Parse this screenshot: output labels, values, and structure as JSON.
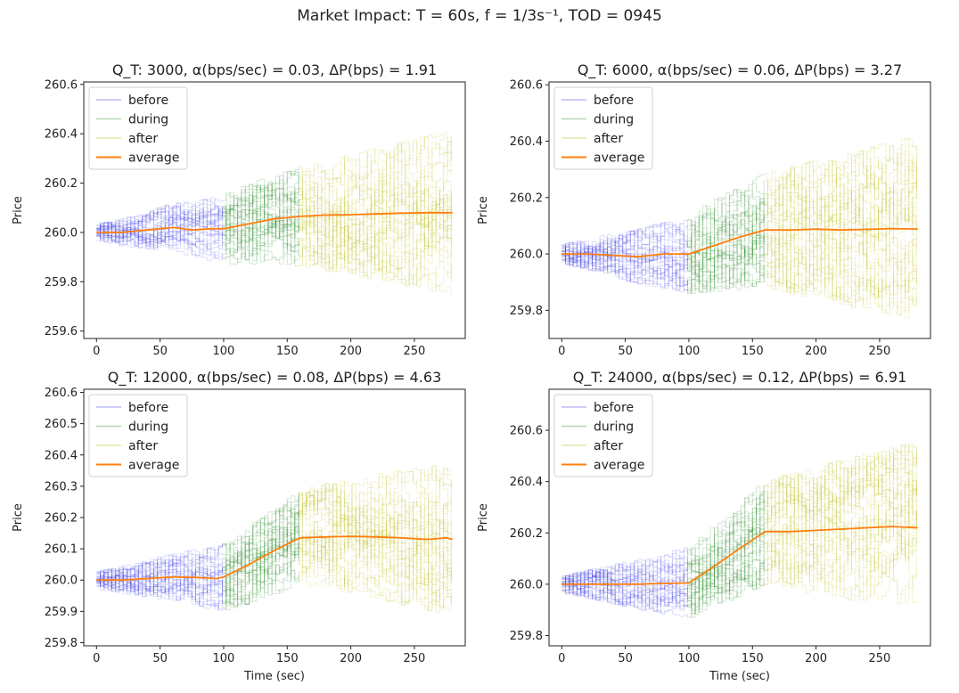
{
  "figure": {
    "suptitle": "Market Impact: T = 60s, f = 1/3s⁻¹, TOD = 0945",
    "colors": {
      "before": "#3a3ae6",
      "during": "#2a8a2a",
      "after": "#c8c840",
      "average": "#ff7f0e",
      "axis": "#222222"
    }
  },
  "chart_data": [
    {
      "type": "line",
      "title": "Q_T: 3000, α(bps/sec) = 0.03, ΔP(bps) = 1.91",
      "xlabel": "",
      "ylabel": "Price",
      "xlim": [
        -10,
        290
      ],
      "ylim": [
        259.57,
        260.61
      ],
      "xticks": [
        0,
        50,
        100,
        150,
        200,
        250
      ],
      "yticks": [
        259.6,
        259.8,
        260.0,
        260.2,
        260.4,
        260.6
      ],
      "yticklabels": [
        "259.6",
        "259.8",
        "260.0",
        "260.2",
        "260.4",
        "260.6"
      ],
      "legend": {
        "position": "top-left",
        "entries": [
          "before",
          "during",
          "after",
          "average"
        ]
      },
      "phases": {
        "before": [
          0,
          100
        ],
        "during": [
          100,
          160
        ],
        "after": [
          160,
          280
        ]
      },
      "band_spread": {
        "before": 0.12,
        "during": 0.2,
        "after": 0.3
      },
      "average": {
        "x": [
          0,
          20,
          40,
          60,
          75,
          90,
          100,
          120,
          140,
          160,
          180,
          200,
          220,
          240,
          260,
          280
        ],
        "y": [
          260.0,
          260.0,
          260.01,
          260.02,
          260.01,
          260.015,
          260.015,
          260.035,
          260.055,
          260.065,
          260.07,
          260.072,
          260.075,
          260.078,
          260.08,
          260.08
        ]
      }
    },
    {
      "type": "line",
      "title": "Q_T: 6000, α(bps/sec) = 0.06, ΔP(bps) = 3.27",
      "xlabel": "",
      "ylabel": "Price",
      "xlim": [
        -10,
        290
      ],
      "ylim": [
        259.7,
        260.61
      ],
      "xticks": [
        0,
        50,
        100,
        150,
        200,
        250
      ],
      "yticks": [
        259.8,
        260.0,
        260.2,
        260.4,
        260.6
      ],
      "yticklabels": [
        "259.8",
        "260.0",
        "260.2",
        "260.4",
        "260.6"
      ],
      "legend": {
        "position": "top-left",
        "entries": [
          "before",
          "during",
          "after",
          "average"
        ]
      },
      "phases": {
        "before": [
          0,
          100
        ],
        "during": [
          100,
          160
        ],
        "after": [
          160,
          280
        ]
      },
      "band_spread": {
        "before": 0.12,
        "during": 0.2,
        "after": 0.3
      },
      "average": {
        "x": [
          0,
          20,
          40,
          60,
          80,
          100,
          120,
          140,
          160,
          180,
          200,
          220,
          240,
          260,
          280
        ],
        "y": [
          260.0,
          260.0,
          259.995,
          259.99,
          260.0,
          260.0,
          260.03,
          260.06,
          260.085,
          260.085,
          260.088,
          260.085,
          260.087,
          260.09,
          260.088
        ]
      }
    },
    {
      "type": "line",
      "title": "Q_T: 12000, α(bps/sec) = 0.08, ΔP(bps) = 4.63",
      "xlabel": "Time (sec)",
      "ylabel": "Price",
      "xlim": [
        -10,
        290
      ],
      "ylim": [
        259.79,
        260.61
      ],
      "xticks": [
        0,
        50,
        100,
        150,
        200,
        250
      ],
      "yticks": [
        259.8,
        259.9,
        260.0,
        260.1,
        260.2,
        260.3,
        260.4,
        260.5,
        260.6
      ],
      "yticklabels": [
        "259.8",
        "259.9",
        "260.0",
        "260.1",
        "260.2",
        "260.3",
        "260.4",
        "260.5",
        "260.6"
      ],
      "legend": {
        "position": "top-left",
        "entries": [
          "before",
          "during",
          "after",
          "average"
        ]
      },
      "phases": {
        "before": [
          0,
          100
        ],
        "during": [
          100,
          160
        ],
        "after": [
          160,
          280
        ]
      },
      "band_spread": {
        "before": 0.1,
        "during": 0.16,
        "after": 0.22
      },
      "average": {
        "x": [
          0,
          20,
          40,
          60,
          80,
          95,
          100,
          120,
          140,
          160,
          180,
          200,
          220,
          240,
          260,
          275,
          280
        ],
        "y": [
          260.0,
          260.0,
          260.005,
          260.01,
          260.008,
          260.005,
          260.01,
          260.05,
          260.095,
          260.135,
          260.138,
          260.14,
          260.138,
          260.135,
          260.13,
          260.135,
          260.13
        ]
      }
    },
    {
      "type": "line",
      "title": "Q_T: 24000, α(bps/sec) = 0.12, ΔP(bps) = 6.91",
      "xlabel": "Time (sec)",
      "ylabel": "Price",
      "xlim": [
        -10,
        290
      ],
      "ylim": [
        259.76,
        260.76
      ],
      "xticks": [
        0,
        50,
        100,
        150,
        200,
        250
      ],
      "yticks": [
        259.8,
        260.0,
        260.2,
        260.4,
        260.6
      ],
      "yticklabels": [
        "259.8",
        "260.0",
        "260.2",
        "260.4",
        "260.6"
      ],
      "legend": {
        "position": "top-left",
        "entries": [
          "before",
          "during",
          "after",
          "average"
        ]
      },
      "phases": {
        "before": [
          0,
          100
        ],
        "during": [
          100,
          160
        ],
        "after": [
          160,
          280
        ]
      },
      "band_spread": {
        "before": 0.12,
        "during": 0.2,
        "after": 0.3
      },
      "average": {
        "x": [
          0,
          20,
          40,
          60,
          80,
          100,
          120,
          140,
          160,
          180,
          200,
          220,
          240,
          260,
          280
        ],
        "y": [
          260.0,
          260.0,
          260.0,
          260.0,
          260.003,
          260.005,
          260.07,
          260.14,
          260.205,
          260.205,
          260.21,
          260.215,
          260.22,
          260.225,
          260.22
        ]
      }
    }
  ]
}
